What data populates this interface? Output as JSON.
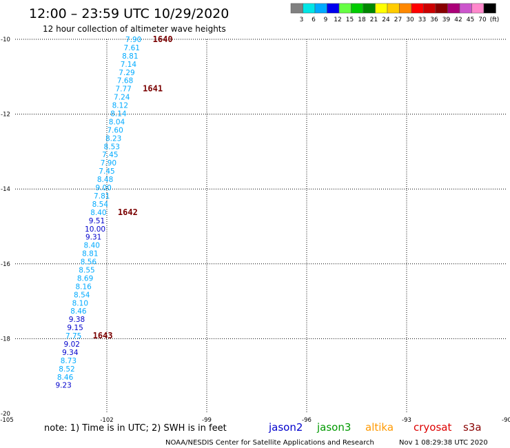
{
  "header": {
    "title": "12:00 – 23:59 UTC 10/29/2020",
    "subtitle": "12 hour collection of altimeter wave heights"
  },
  "color_scale": {
    "colors": [
      "#808080",
      "#00e5e5",
      "#00aaff",
      "#0000ee",
      "#66ff44",
      "#00cc00",
      "#008800",
      "#ffff00",
      "#ffcc00",
      "#ff8800",
      "#ff0000",
      "#cc0000",
      "#880000",
      "#aa0077",
      "#cc55cc",
      "#ff88cc",
      "#000000"
    ],
    "labels": [
      "3",
      "6",
      "9",
      "12",
      "15",
      "18",
      "21",
      "24",
      "27",
      "30",
      "33",
      "36",
      "39",
      "42",
      "45",
      "70",
      "(ft)"
    ]
  },
  "axes": {
    "lon_ticks": [
      {
        "value": -105,
        "label": "-105"
      },
      {
        "value": -102,
        "label": "-102"
      },
      {
        "value": -99,
        "label": "-99"
      },
      {
        "value": -96,
        "label": "-96"
      },
      {
        "value": -93,
        "label": "-93"
      },
      {
        "value": -90,
        "label": "-90"
      }
    ],
    "lat_ticks": [
      {
        "value": -10,
        "label": "-10"
      },
      {
        "value": -12,
        "label": "-12"
      },
      {
        "value": -14,
        "label": "-14"
      },
      {
        "value": -16,
        "label": "-16"
      },
      {
        "value": -18,
        "label": "-18"
      },
      {
        "value": -20,
        "label": "-20"
      }
    ],
    "lon_range": [
      -105,
      -90
    ],
    "lat_range": [
      -20,
      -10
    ]
  },
  "chart_data": {
    "type": "scatter",
    "lon_range": [
      -105,
      -90
    ],
    "lat_range": [
      -20,
      -10
    ],
    "grid": true,
    "track_label_series": "s3a",
    "swh_points": [
      {
        "lon": -101.2,
        "lat": -10.0,
        "swh": "7.90",
        "color": "#00aaff"
      },
      {
        "lon": -101.25,
        "lat": -10.22,
        "swh": "7.61",
        "color": "#00aaff"
      },
      {
        "lon": -101.3,
        "lat": -10.44,
        "swh": "8.81",
        "color": "#00aaff"
      },
      {
        "lon": -101.35,
        "lat": -10.66,
        "swh": "7.14",
        "color": "#00aaff"
      },
      {
        "lon": -101.4,
        "lat": -10.88,
        "swh": "7.29",
        "color": "#00aaff"
      },
      {
        "lon": -101.45,
        "lat": -11.1,
        "swh": "7.68",
        "color": "#00aaff"
      },
      {
        "lon": -101.5,
        "lat": -11.32,
        "swh": "7.77",
        "color": "#00aaff"
      },
      {
        "lon": -101.55,
        "lat": -11.54,
        "swh": "7.24",
        "color": "#00aaff"
      },
      {
        "lon": -101.6,
        "lat": -11.76,
        "swh": "8.12",
        "color": "#00aaff"
      },
      {
        "lon": -101.65,
        "lat": -11.98,
        "swh": "8.14",
        "color": "#00aaff"
      },
      {
        "lon": -101.7,
        "lat": -12.2,
        "swh": "8.04",
        "color": "#00aaff"
      },
      {
        "lon": -101.75,
        "lat": -12.42,
        "swh": "7.60",
        "color": "#00aaff"
      },
      {
        "lon": -101.8,
        "lat": -12.64,
        "swh": "8.23",
        "color": "#00aaff"
      },
      {
        "lon": -101.85,
        "lat": -12.86,
        "swh": "8.53",
        "color": "#00aaff"
      },
      {
        "lon": -101.9,
        "lat": -13.08,
        "swh": "7.45",
        "color": "#00aaff"
      },
      {
        "lon": -101.95,
        "lat": -13.3,
        "swh": "7.90",
        "color": "#00aaff"
      },
      {
        "lon": -102.0,
        "lat": -13.52,
        "swh": "7.45",
        "color": "#00aaff"
      },
      {
        "lon": -102.05,
        "lat": -13.74,
        "swh": "8.48",
        "color": "#00aaff"
      },
      {
        "lon": -102.1,
        "lat": -13.96,
        "swh": "9.00",
        "color": "#00aaff"
      },
      {
        "lon": -102.15,
        "lat": -14.18,
        "swh": "7.81",
        "color": "#00aaff"
      },
      {
        "lon": -102.2,
        "lat": -14.4,
        "swh": "8.54",
        "color": "#00aaff"
      },
      {
        "lon": -102.25,
        "lat": -14.62,
        "swh": "8.40",
        "color": "#00aaff"
      },
      {
        "lon": -102.3,
        "lat": -14.84,
        "swh": "9.51",
        "color": "#0000cc"
      },
      {
        "lon": -102.35,
        "lat": -15.06,
        "swh": "10.00",
        "color": "#0000cc"
      },
      {
        "lon": -102.4,
        "lat": -15.28,
        "swh": "9.31",
        "color": "#0000cc"
      },
      {
        "lon": -102.45,
        "lat": -15.5,
        "swh": "8.40",
        "color": "#00aaff"
      },
      {
        "lon": -102.5,
        "lat": -15.72,
        "swh": "8.81",
        "color": "#00aaff"
      },
      {
        "lon": -102.55,
        "lat": -15.94,
        "swh": "8.56",
        "color": "#00aaff"
      },
      {
        "lon": -102.6,
        "lat": -16.16,
        "swh": "8.55",
        "color": "#00aaff"
      },
      {
        "lon": -102.65,
        "lat": -16.38,
        "swh": "8.69",
        "color": "#00aaff"
      },
      {
        "lon": -102.7,
        "lat": -16.6,
        "swh": "8.16",
        "color": "#00aaff"
      },
      {
        "lon": -102.75,
        "lat": -16.82,
        "swh": "8.54",
        "color": "#00aaff"
      },
      {
        "lon": -102.8,
        "lat": -17.04,
        "swh": "8.10",
        "color": "#00aaff"
      },
      {
        "lon": -102.85,
        "lat": -17.26,
        "swh": "8.46",
        "color": "#00aaff"
      },
      {
        "lon": -102.9,
        "lat": -17.48,
        "swh": "9.38",
        "color": "#0000cc"
      },
      {
        "lon": -102.95,
        "lat": -17.7,
        "swh": "9.15",
        "color": "#0000cc"
      },
      {
        "lon": -103.0,
        "lat": -17.92,
        "swh": "7.75",
        "color": "#00aaff"
      },
      {
        "lon": -103.05,
        "lat": -18.14,
        "swh": "9.02",
        "color": "#0000cc"
      },
      {
        "lon": -103.1,
        "lat": -18.36,
        "swh": "9.34",
        "color": "#0000cc"
      },
      {
        "lon": -103.15,
        "lat": -18.58,
        "swh": "8.73",
        "color": "#00aaff"
      },
      {
        "lon": -103.2,
        "lat": -18.8,
        "swh": "8.52",
        "color": "#00aaff"
      },
      {
        "lon": -103.25,
        "lat": -19.02,
        "swh": "8.46",
        "color": "#00aaff"
      },
      {
        "lon": -103.3,
        "lat": -19.24,
        "swh": "9.23",
        "color": "#0000cc"
      }
    ],
    "time_labels": [
      {
        "lon": -101.2,
        "lat": -10.0,
        "text": "1640"
      },
      {
        "lon": -101.5,
        "lat": -11.32,
        "text": "1641"
      },
      {
        "lon": -102.25,
        "lat": -14.62,
        "text": "1642"
      },
      {
        "lon": -103.0,
        "lat": -17.92,
        "text": "1643"
      }
    ]
  },
  "footer": {
    "note": "note:  1) Time is in UTC;  2) SWH is in feet",
    "satellites": [
      {
        "name": "jason2",
        "color": "#0000cc"
      },
      {
        "name": "jason3",
        "color": "#009900"
      },
      {
        "name": "altika",
        "color": "#ff9900"
      },
      {
        "name": "cryosat",
        "color": "#dd0000"
      },
      {
        "name": "s3a",
        "color": "#880000"
      }
    ],
    "credit": "NOAA/NESDIS Center for Satellite Applications and Research",
    "timestamp": "Nov  1 08:29:38 UTC 2020"
  }
}
